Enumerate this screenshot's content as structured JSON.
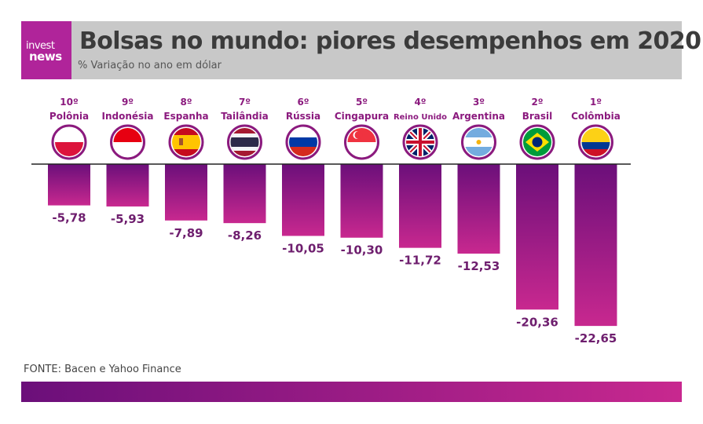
{
  "brand": {
    "line1": "invest",
    "line2": "news"
  },
  "header": {
    "title": "Bolsas no mundo: piores desempenhos em 2020",
    "subtitle": "% Variação no ano em dólar"
  },
  "source": "FONTE: Bacen e Yahoo Finance",
  "colors": {
    "bar_top": "#6b0f7a",
    "bar_bottom": "#c8288f",
    "accent": "#8b1a7e",
    "header_bg": "#c8c8c8"
  },
  "chart_data": {
    "type": "bar",
    "categories": [
      "Polônia",
      "Indonésia",
      "Espanha",
      "Tailândia",
      "Rússia",
      "Cingapura",
      "Reino Unido",
      "Argentina",
      "Brasil",
      "Colômbia"
    ],
    "ranks": [
      "10º",
      "9º",
      "8º",
      "7º",
      "6º",
      "5º",
      "4º",
      "3º",
      "2º",
      "1º"
    ],
    "values": [
      -5.78,
      -5.93,
      -7.89,
      -8.26,
      -10.05,
      -10.3,
      -11.72,
      -12.53,
      -20.36,
      -22.65
    ],
    "labels": [
      "-5,78",
      "-5,93",
      "-7,89",
      "-8,26",
      "-10,05",
      "-10,30",
      "-11,72",
      "-12,53",
      "-20,36",
      "-22,65"
    ],
    "flags": [
      "poland-flag",
      "indonesia-flag",
      "spain-flag",
      "thailand-flag",
      "russia-flag",
      "singapore-flag",
      "uk-flag",
      "argentina-flag",
      "brazil-flag",
      "colombia-flag"
    ],
    "ylim": [
      -25,
      0
    ]
  }
}
